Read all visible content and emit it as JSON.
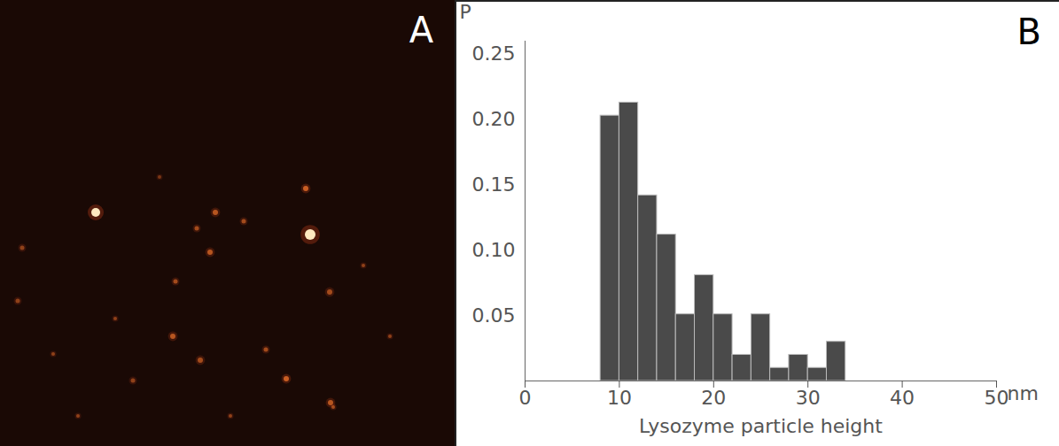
{
  "chart_data": [
    {
      "panel_label": "A",
      "type": "image"
    },
    {
      "panel_label": "B",
      "type": "histogram",
      "xlabel": "Lysozyme particle height",
      "x_unit": "nm",
      "ylabel": "P",
      "bins": [
        8,
        10,
        12,
        14,
        16,
        18,
        20,
        22,
        24,
        26,
        28,
        30,
        32,
        34
      ],
      "values": [
        0.203,
        0.213,
        0.142,
        0.112,
        0.051,
        0.081,
        0.051,
        0.02,
        0.051,
        0.01,
        0.02,
        0.01,
        0.03
      ],
      "color": "#4a4a4a",
      "xlim": [
        0,
        50
      ],
      "xticks": [
        0,
        10,
        20,
        30,
        40,
        50
      ],
      "ylim": [
        0,
        0.26
      ],
      "yticks": [
        0.05,
        {
          "value": 0.1,
          "label": "0.10"
        },
        0.15,
        {
          "value": 0.2,
          "label": "0.20"
        },
        0.25
      ],
      "grid": false
    }
  ]
}
